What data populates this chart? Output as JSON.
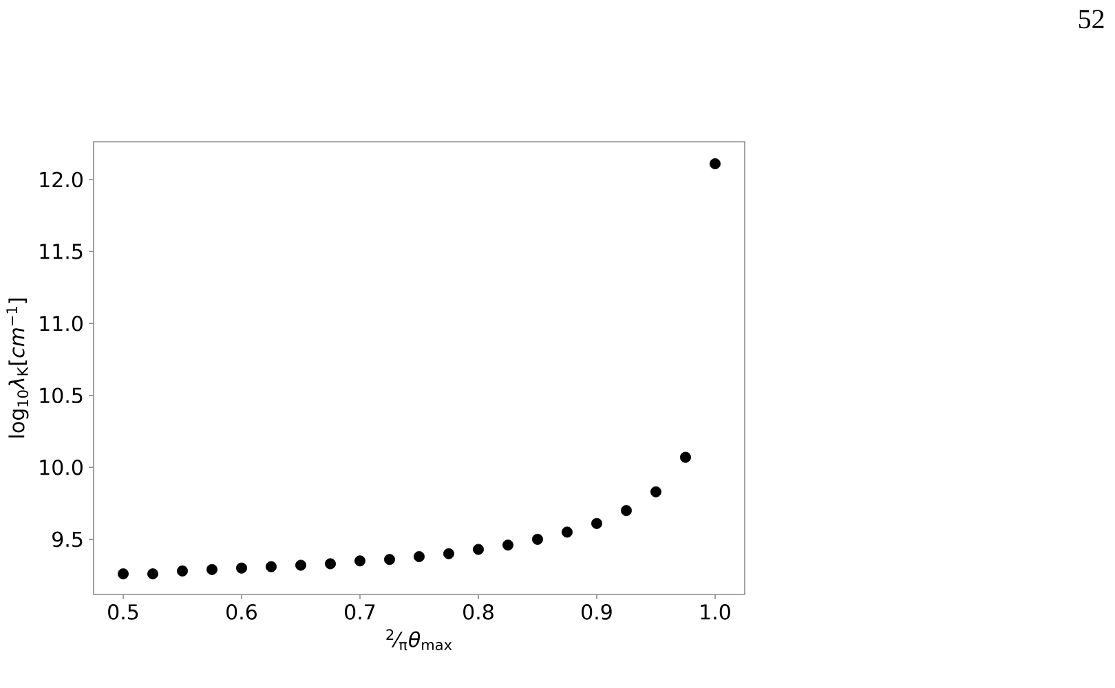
{
  "chart_data": {
    "type": "scatter",
    "xlabel": "$^{2}$⁄$_{π}$*θ*$_{max}$",
    "ylabel": "log$_{10}$*λ*$_{K}$[*cm*$^{−1}$]",
    "annotations": [
      "52"
    ],
    "x": [
      0.5,
      0.525,
      0.55,
      0.575,
      0.6,
      0.625,
      0.65,
      0.675,
      0.7,
      0.725,
      0.75,
      0.775,
      0.8,
      0.825,
      0.85,
      0.875,
      0.9,
      0.925,
      0.95,
      0.975,
      1.0
    ],
    "values": [
      9.26,
      9.26,
      9.28,
      9.29,
      9.3,
      9.31,
      9.32,
      9.33,
      9.35,
      9.36,
      9.38,
      9.4,
      9.43,
      9.46,
      9.5,
      9.55,
      9.61,
      9.7,
      9.83,
      10.07,
      12.11
    ],
    "color": "#000000",
    "marker": "circle",
    "grid": false,
    "xlim": [
      0.475,
      1.025
    ],
    "ylim": [
      9.117,
      12.263
    ],
    "xticks": [
      0.5,
      0.6,
      0.7,
      0.8,
      0.9,
      {
        "value": 1.0,
        "label": "1.0"
      }
    ],
    "yticks": [
      9.5,
      {
        "value": 10.0,
        "label": "10.0"
      },
      10.5,
      {
        "value": 11.0,
        "label": "11.0"
      },
      11.5,
      {
        "value": 12.0,
        "label": "12.0"
      }
    ]
  }
}
